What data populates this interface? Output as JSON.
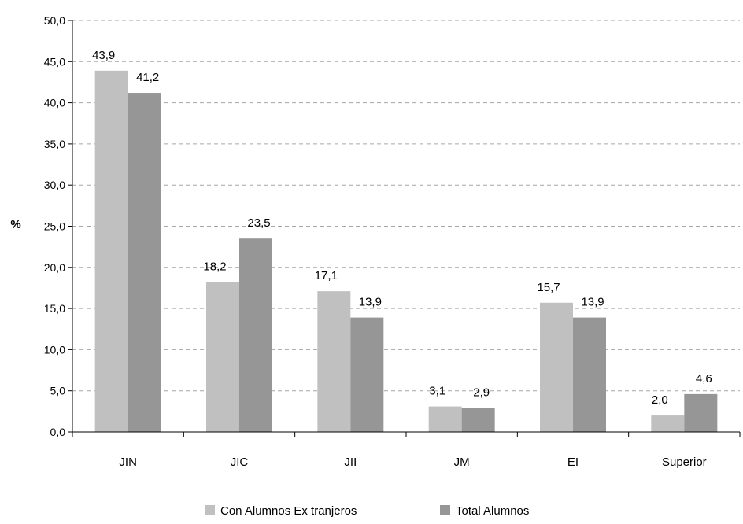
{
  "chart_data": {
    "type": "bar",
    "categories": [
      "JIN",
      "JIC",
      "JII",
      "JM",
      "EI",
      "Superior"
    ],
    "series": [
      {
        "name": "Con Alumnos  Ex tranjeros",
        "values": [
          43.9,
          18.2,
          17.1,
          3.1,
          15.7,
          2.0
        ],
        "labels": [
          "43,9",
          "18,2",
          "17,1",
          "3,1",
          "15,7",
          "2,0"
        ],
        "color": "#c0c0c0"
      },
      {
        "name": "Total Alumnos",
        "values": [
          41.2,
          23.5,
          13.9,
          2.9,
          13.9,
          4.6
        ],
        "labels": [
          "41,2",
          "23,5",
          "13,9",
          "2,9",
          "13,9",
          "4,6"
        ],
        "color": "#969696"
      }
    ],
    "ylabel": "%",
    "xlabel": "",
    "ylim": [
      0,
      50
    ],
    "yticks": [
      0,
      5,
      10,
      15,
      20,
      25,
      30,
      35,
      40,
      45,
      50
    ],
    "ytick_labels": [
      "0,0",
      "5,0",
      "10,0",
      "15,0",
      "20,0",
      "25,0",
      "30,0",
      "35,0",
      "40,0",
      "45,0",
      "50,0"
    ],
    "grid": true,
    "legend_position": "bottom"
  }
}
